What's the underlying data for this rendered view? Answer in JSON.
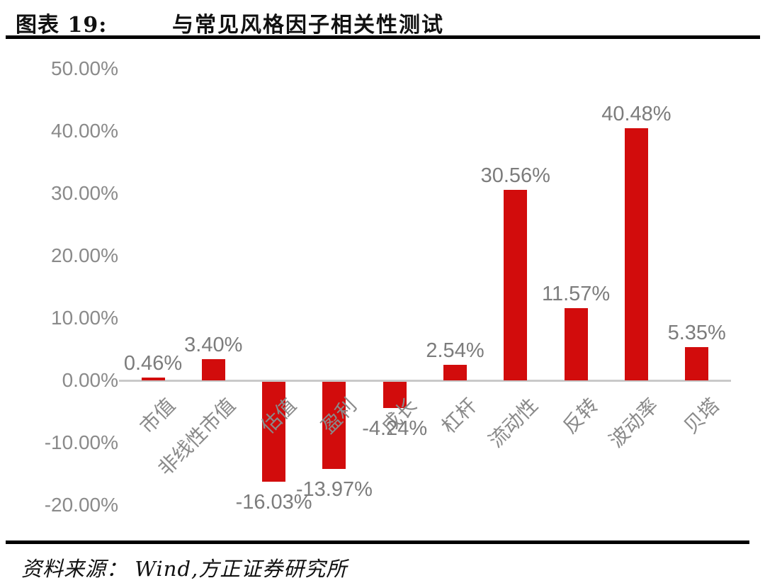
{
  "header": {
    "figure_label": "图表 19:",
    "title": "与常见风格因子相关性测试"
  },
  "footer": {
    "source_text": "资料来源： Wind,方正证券研究所"
  },
  "chart_data": {
    "type": "bar",
    "title": "与常见风格因子相关性测试",
    "categories": [
      "市值",
      "非线性市值",
      "估值",
      "盈利",
      "成长",
      "杠杆",
      "流动性",
      "反转",
      "波动率",
      "贝塔"
    ],
    "values": [
      0.46,
      3.4,
      -16.03,
      -13.97,
      -4.24,
      2.54,
      30.56,
      11.57,
      40.48,
      5.35
    ],
    "data_labels": [
      "0.46%",
      "3.40%",
      "-16.03%",
      "-13.97%",
      "-4.24%",
      "2.54%",
      "30.56%",
      "11.57%",
      "40.48%",
      "5.35%"
    ],
    "y_ticks": [
      {
        "label": "50.00%",
        "value": 50
      },
      {
        "label": "40.00%",
        "value": 40
      },
      {
        "label": "30.00%",
        "value": 30
      },
      {
        "label": "20.00%",
        "value": 20
      },
      {
        "label": "10.00%",
        "value": 10
      },
      {
        "label": "0.00%",
        "value": 0
      },
      {
        "label": "-10.00%",
        "value": -10
      },
      {
        "label": "-20.00%",
        "value": -20
      }
    ],
    "ylim": [
      -20,
      50
    ],
    "xlabel": "",
    "ylabel": "",
    "grid": false,
    "legend": false,
    "bar_color": "#d20c0c",
    "axis_line_color": "#c9c9c9",
    "tick_label_color": "#8a8a8a",
    "value_label_color": "#7c7c7c"
  }
}
